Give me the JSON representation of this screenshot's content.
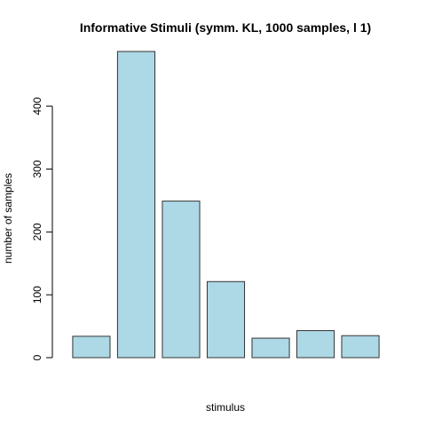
{
  "chart_data": {
    "type": "bar",
    "title": "Informative Stimuli (symm. KL, 1000 samples, l 1)",
    "xlabel": "stimulus",
    "ylabel": "number of samples",
    "categories": [
      "",
      "",
      "",
      "",
      "",
      "",
      ""
    ],
    "values": [
      34,
      487,
      249,
      121,
      31,
      43,
      35
    ],
    "ylim": [
      0,
      487
    ],
    "yticks": [
      0,
      100,
      200,
      300,
      400
    ],
    "bar_color": "#add8e6",
    "grid": false,
    "legend": "none"
  }
}
